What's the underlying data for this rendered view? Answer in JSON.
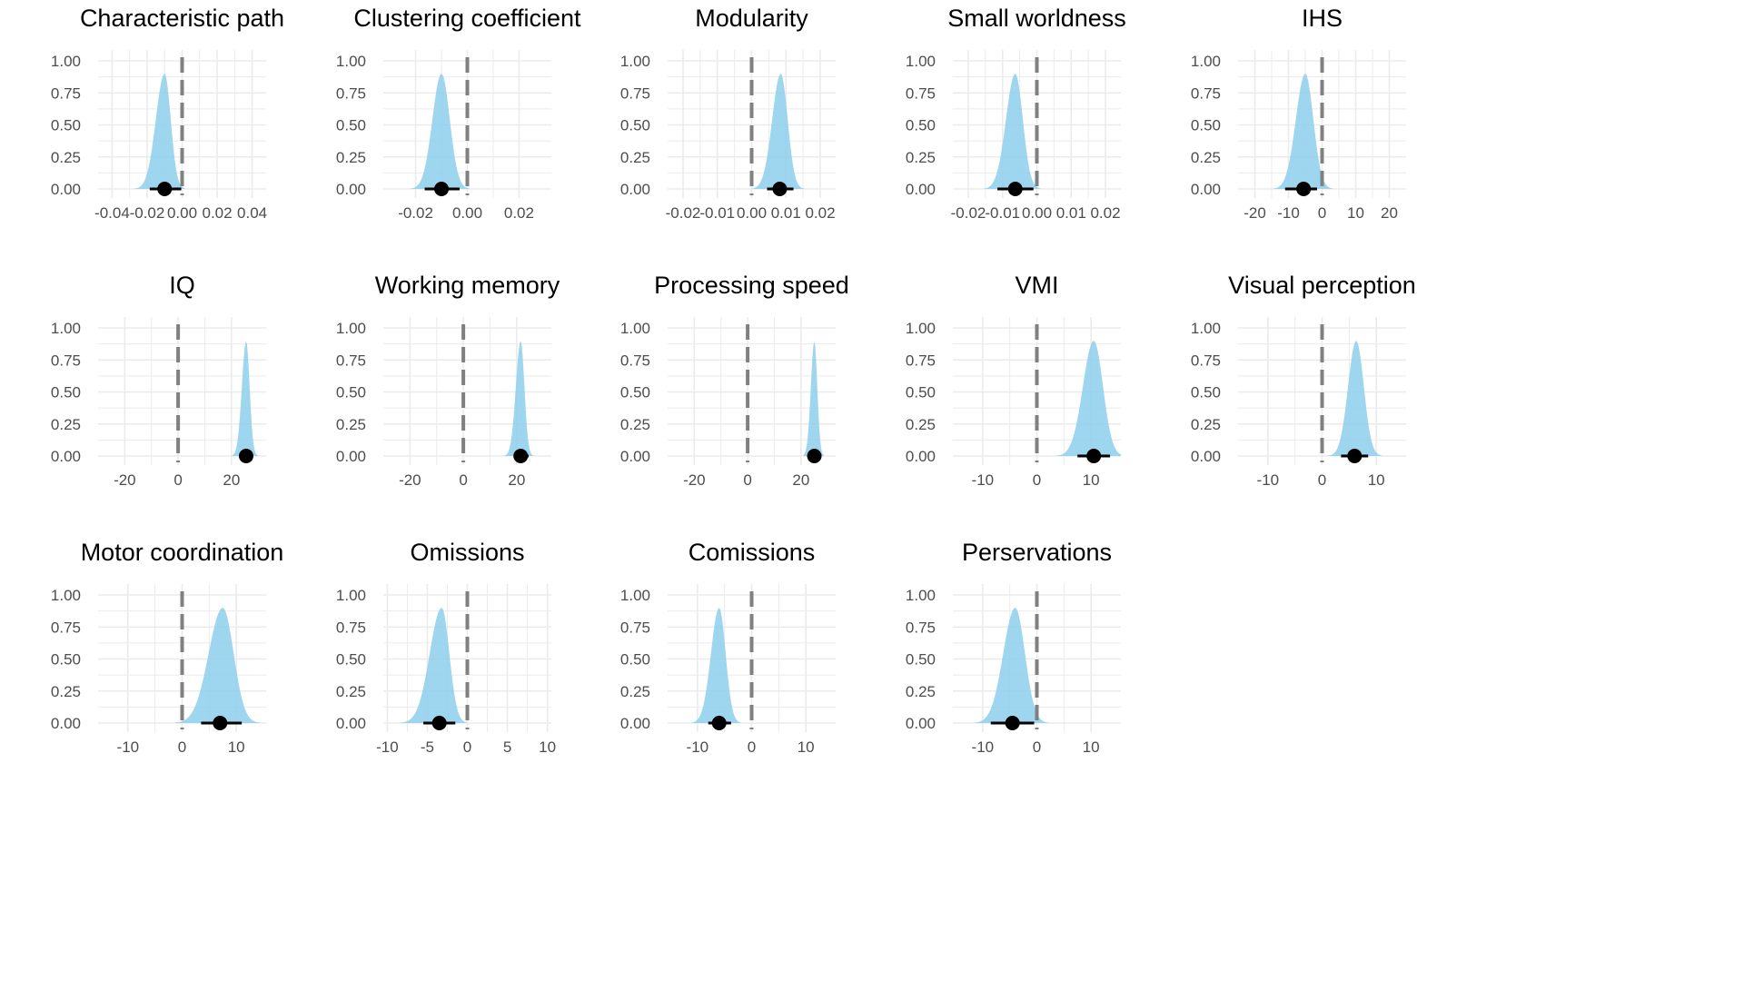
{
  "chart_data": [
    {
      "type": "area",
      "title": "Characteristic path",
      "xticks": [
        -0.04,
        -0.02,
        0,
        0.02,
        0.04
      ],
      "xtick_labels": [
        "-0.04",
        "-0.02",
        "0.00",
        "0.02",
        "0.04"
      ],
      "xlim": [
        -0.048,
        0.048
      ],
      "yticks": [
        0,
        0.25,
        0.5,
        0.75,
        1
      ],
      "ytick_labels": [
        "0.00",
        "0.25",
        "0.50",
        "0.75",
        "1.00"
      ],
      "ylim": [
        0,
        1
      ],
      "reference_x": 0,
      "density": {
        "mode": -0.01,
        "sd_left": 0.005,
        "sd_right": 0.0035,
        "peak": 0.9
      },
      "point_estimate": -0.01,
      "interval": [
        -0.0185,
        -0.0005
      ]
    },
    {
      "type": "area",
      "title": "Clustering coefficient",
      "xticks": [
        -0.02,
        0,
        0.02
      ],
      "xtick_labels": [
        "-0.02",
        "0.00",
        "0.02"
      ],
      "xlim": [
        -0.0325,
        0.0325
      ],
      "yticks": [
        0,
        0.25,
        0.5,
        0.75,
        1
      ],
      "ytick_labels": [
        "0.00",
        "0.25",
        "0.50",
        "0.75",
        "1.00"
      ],
      "ylim": [
        0,
        1
      ],
      "reference_x": 0,
      "density": {
        "mode": -0.01,
        "sd_left": 0.0035,
        "sd_right": 0.0032,
        "peak": 0.9
      },
      "point_estimate": -0.01,
      "interval": [
        -0.0165,
        -0.003
      ]
    },
    {
      "type": "area",
      "title": "Modularity",
      "xticks": [
        -0.02,
        -0.01,
        0,
        0.01,
        0.02
      ],
      "xtick_labels": [
        "-0.02",
        "-0.01",
        "0.00",
        "0.01",
        "0.02"
      ],
      "xlim": [
        -0.0245,
        0.0245
      ],
      "yticks": [
        0,
        0.25,
        0.5,
        0.75,
        1
      ],
      "ytick_labels": [
        "0.00",
        "0.25",
        "0.50",
        "0.75",
        "1.00"
      ],
      "ylim": [
        0,
        1
      ],
      "reference_x": 0,
      "density": {
        "mode": 0.0085,
        "sd_left": 0.0025,
        "sd_right": 0.002,
        "peak": 0.9
      },
      "point_estimate": 0.0082,
      "interval": [
        0.0045,
        0.0122
      ]
    },
    {
      "type": "area",
      "title": "Small worldness",
      "xticks": [
        -0.02,
        -0.01,
        0,
        0.01,
        0.02
      ],
      "xtick_labels": [
        "-0.02",
        "-0.01",
        "0.00",
        "0.01",
        "0.02"
      ],
      "xlim": [
        -0.0245,
        0.0245
      ],
      "yticks": [
        0,
        0.25,
        0.5,
        0.75,
        1
      ],
      "ytick_labels": [
        "0.00",
        "0.25",
        "0.50",
        "0.75",
        "1.00"
      ],
      "ylim": [
        0,
        1
      ],
      "reference_x": 0,
      "density": {
        "mode": -0.0063,
        "sd_left": 0.0027,
        "sd_right": 0.0022,
        "peak": 0.9
      },
      "point_estimate": -0.0063,
      "interval": [
        -0.0115,
        -0.001
      ]
    },
    {
      "type": "area",
      "title": "IHS",
      "xticks": [
        -20,
        -10,
        0,
        10,
        20
      ],
      "xtick_labels": [
        "-20",
        "-10",
        "0",
        "10",
        "20"
      ],
      "xlim": [
        -25,
        25
      ],
      "yticks": [
        0,
        0.25,
        0.5,
        0.75,
        1
      ],
      "ytick_labels": [
        "0.00",
        "0.25",
        "0.50",
        "0.75",
        "1.00"
      ],
      "ylim": [
        0,
        1
      ],
      "reference_x": 0,
      "density": {
        "mode": -5,
        "sd_left": 2.8,
        "sd_right": 2.4,
        "peak": 0.9
      },
      "point_estimate": -5.5,
      "interval": [
        -11,
        -1.5
      ]
    },
    {
      "type": "area",
      "title": "IQ",
      "xticks": [
        -20,
        0,
        20
      ],
      "xtick_labels": [
        "-20",
        "0",
        "20"
      ],
      "xlim": [
        -30,
        33
      ],
      "yticks": [
        0,
        0.25,
        0.5,
        0.75,
        1
      ],
      "ytick_labels": [
        "0.00",
        "0.25",
        "0.50",
        "0.75",
        "1.00"
      ],
      "ylim": [
        0,
        1
      ],
      "reference_x": 0,
      "density": {
        "mode": 25.5,
        "sd_left": 1.6,
        "sd_right": 1.3,
        "peak": 0.9
      },
      "point_estimate": 25.5,
      "interval": [
        23.5,
        27.5
      ]
    },
    {
      "type": "area",
      "title": "Working memory",
      "xticks": [
        -20,
        0,
        20
      ],
      "xtick_labels": [
        "-20",
        "0",
        "20"
      ],
      "xlim": [
        -30,
        33
      ],
      "yticks": [
        0,
        0.25,
        0.5,
        0.75,
        1
      ],
      "ytick_labels": [
        "0.00",
        "0.25",
        "0.50",
        "0.75",
        "1.00"
      ],
      "ylim": [
        0,
        1
      ],
      "reference_x": 0,
      "density": {
        "mode": 21.5,
        "sd_left": 1.8,
        "sd_right": 1.4,
        "peak": 0.9
      },
      "point_estimate": 21.5,
      "interval": [
        19,
        24.5
      ]
    },
    {
      "type": "area",
      "title": "Processing speed",
      "xticks": [
        -20,
        0,
        20
      ],
      "xtick_labels": [
        "-20",
        "0",
        "20"
      ],
      "xlim": [
        -30,
        33
      ],
      "yticks": [
        0,
        0.25,
        0.5,
        0.75,
        1
      ],
      "ytick_labels": [
        "0.00",
        "0.25",
        "0.50",
        "0.75",
        "1.00"
      ],
      "ylim": [
        0,
        1
      ],
      "reference_x": 0,
      "density": {
        "mode": 25,
        "sd_left": 1.3,
        "sd_right": 1.1,
        "peak": 0.9
      },
      "point_estimate": 25,
      "interval": [
        23.5,
        26.5
      ]
    },
    {
      "type": "area",
      "title": "VMI",
      "xticks": [
        -10,
        0,
        10
      ],
      "xtick_labels": [
        "-10",
        "0",
        "10"
      ],
      "xlim": [
        -15.5,
        15.5
      ],
      "yticks": [
        0,
        0.25,
        0.5,
        0.75,
        1
      ],
      "ytick_labels": [
        "0.00",
        "0.25",
        "0.50",
        "0.75",
        "1.00"
      ],
      "ylim": [
        0,
        1
      ],
      "reference_x": 0,
      "density": {
        "mode": 10.5,
        "sd_left": 2.0,
        "sd_right": 1.7,
        "peak": 0.9
      },
      "point_estimate": 10.5,
      "interval": [
        7.5,
        13.5
      ]
    },
    {
      "type": "area",
      "title": "Visual perception",
      "xticks": [
        -10,
        0,
        10
      ],
      "xtick_labels": [
        "-10",
        "0",
        "10"
      ],
      "xlim": [
        -15.5,
        15.5
      ],
      "yticks": [
        0,
        0.25,
        0.5,
        0.75,
        1
      ],
      "ytick_labels": [
        "0.00",
        "0.25",
        "0.50",
        "0.75",
        "1.00"
      ],
      "ylim": [
        0,
        1
      ],
      "reference_x": 0,
      "density": {
        "mode": 6.3,
        "sd_left": 1.5,
        "sd_right": 1.4,
        "peak": 0.9
      },
      "point_estimate": 6,
      "interval": [
        3.5,
        8.5
      ]
    },
    {
      "type": "area",
      "title": "Motor coordination",
      "xticks": [
        -10,
        0,
        10
      ],
      "xtick_labels": [
        "-10",
        "0",
        "10"
      ],
      "xlim": [
        -15.5,
        15.5
      ],
      "yticks": [
        0,
        0.25,
        0.5,
        0.75,
        1
      ],
      "ytick_labels": [
        "0.00",
        "0.25",
        "0.50",
        "0.75",
        "1.00"
      ],
      "ylim": [
        0,
        1
      ],
      "reference_x": 0,
      "density": {
        "mode": 7.5,
        "sd_left": 2.6,
        "sd_right": 2.0,
        "peak": 0.9
      },
      "point_estimate": 7,
      "interval": [
        3.5,
        11
      ]
    },
    {
      "type": "area",
      "title": "Omissions",
      "xticks": [
        -10,
        -5,
        0,
        5,
        10
      ],
      "xtick_labels": [
        "-10",
        "-5",
        "0",
        "5",
        "10"
      ],
      "xlim": [
        -10.5,
        10.5
      ],
      "yticks": [
        0,
        0.25,
        0.5,
        0.75,
        1
      ],
      "ytick_labels": [
        "0.00",
        "0.25",
        "0.50",
        "0.75",
        "1.00"
      ],
      "ylim": [
        0,
        1
      ],
      "reference_x": 0,
      "density": {
        "mode": -3.2,
        "sd_left": 1.5,
        "sd_right": 0.95,
        "peak": 0.9
      },
      "point_estimate": -3.5,
      "interval": [
        -5.5,
        -1.5
      ]
    },
    {
      "type": "area",
      "title": "Comissions",
      "xticks": [
        -10,
        0,
        10
      ],
      "xtick_labels": [
        "-10",
        "0",
        "10"
      ],
      "xlim": [
        -15.5,
        15.5
      ],
      "yticks": [
        0,
        0.25,
        0.5,
        0.75,
        1
      ],
      "ytick_labels": [
        "0.00",
        "0.25",
        "0.50",
        "0.75",
        "1.00"
      ],
      "ylim": [
        0,
        1
      ],
      "reference_x": 0,
      "density": {
        "mode": -6,
        "sd_left": 1.5,
        "sd_right": 1.2,
        "peak": 0.9
      },
      "point_estimate": -6,
      "interval": [
        -8,
        -3.8
      ]
    },
    {
      "type": "area",
      "title": "Perservations",
      "xticks": [
        -10,
        0,
        10
      ],
      "xtick_labels": [
        "-10",
        "0",
        "10"
      ],
      "xlim": [
        -15.5,
        15.5
      ],
      "yticks": [
        0,
        0.25,
        0.5,
        0.75,
        1
      ],
      "ytick_labels": [
        "0.00",
        "0.25",
        "0.50",
        "0.75",
        "1.00"
      ],
      "ylim": [
        0,
        1
      ],
      "reference_x": 0,
      "density": {
        "mode": -4,
        "sd_left": 2.2,
        "sd_right": 1.8,
        "peak": 0.9
      },
      "point_estimate": -4.5,
      "interval": [
        -8.5,
        -0.5
      ]
    }
  ],
  "colors": {
    "density_fill": "#8ecfec",
    "reference_line": "#808080",
    "grid": "#ebebeb",
    "point": "#000000",
    "text": "#000000",
    "tick_text": "#4d4d4d"
  }
}
